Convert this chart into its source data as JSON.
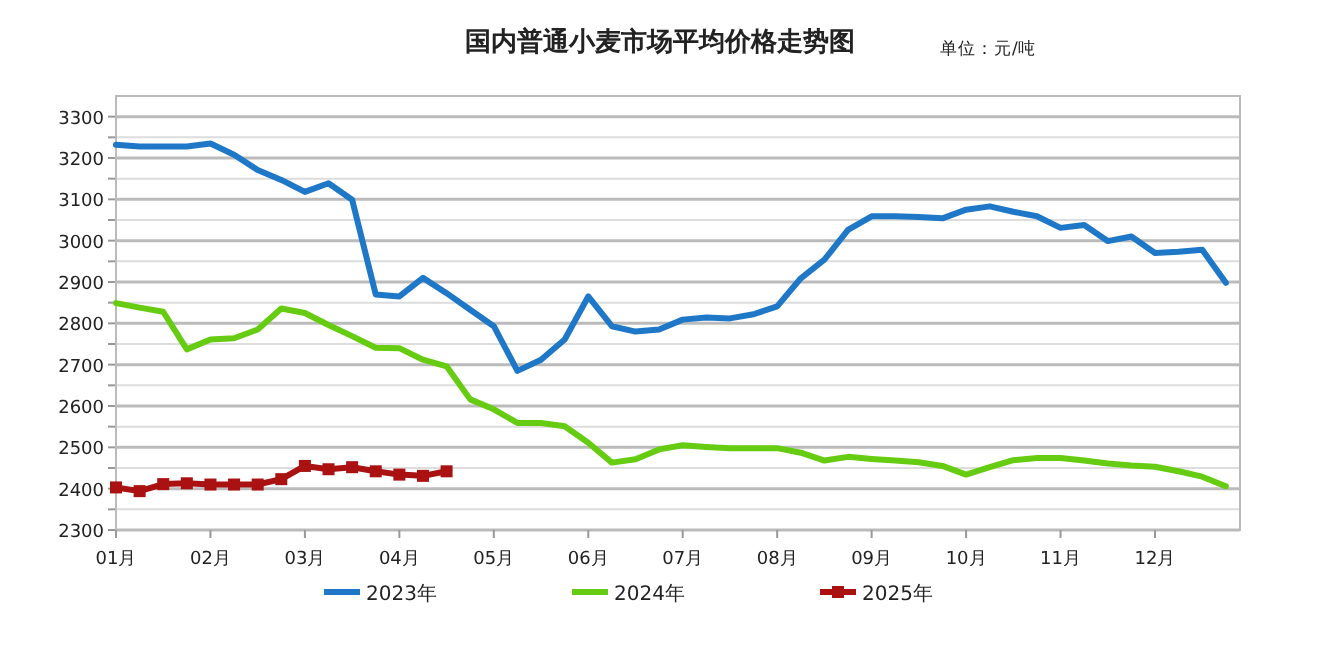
{
  "chart_data": {
    "type": "line",
    "title": "国内普通小麦市场平均价格走势图",
    "annotations": [
      "单位：元/吨"
    ],
    "categories": [
      "01月",
      null,
      null,
      null,
      "02月",
      null,
      null,
      null,
      "03月",
      null,
      null,
      null,
      "04月",
      null,
      null,
      null,
      "05月",
      null,
      null,
      null,
      "06月",
      null,
      null,
      null,
      "07月",
      null,
      null,
      null,
      "08月",
      null,
      null,
      null,
      "09月",
      null,
      null,
      null,
      "10月",
      null,
      null,
      null,
      "11月",
      null,
      null,
      null,
      "12月",
      null,
      null,
      null
    ],
    "series": [
      {
        "name": "2023年",
        "color": "#1f77c8",
        "marker": "none",
        "values": [
          3232,
          3228,
          3228,
          3228,
          3235,
          3208,
          3171,
          3147,
          3118,
          3139,
          3099,
          2870,
          2865,
          2910,
          2873,
          2833,
          2793,
          2685,
          2712,
          2761,
          2865,
          2793,
          2780,
          2785,
          2809,
          2814,
          2812,
          2822,
          2841,
          2909,
          2954,
          3026,
          3059,
          3059,
          3057,
          3054,
          3075,
          3083,
          3070,
          3059,
          3031,
          3038,
          2999,
          3010,
          2970,
          2973,
          2978,
          2898
        ]
      },
      {
        "name": "2024年",
        "color": "#66cc11",
        "marker": "none",
        "values": [
          2849,
          2838,
          2828,
          2737,
          2761,
          2764,
          2785,
          2836,
          2825,
          2796,
          2769,
          2741,
          2740,
          2712,
          2696,
          2616,
          2592,
          2559,
          2559,
          2551,
          2511,
          2463,
          2471,
          2495,
          2505,
          2501,
          2498,
          2498,
          2498,
          2487,
          2468,
          2477,
          2472,
          2468,
          2464,
          2455,
          2434,
          2452,
          2469,
          2474,
          2474,
          2468,
          2461,
          2456,
          2453,
          2442,
          2429,
          2406
        ]
      },
      {
        "name": "2025年",
        "color": "#aa1111",
        "marker": "square",
        "values": [
          2403,
          2394,
          2411,
          2413,
          2410,
          2410,
          2410,
          2423,
          2455,
          2447,
          2452,
          2442,
          2434,
          2431,
          2442,
          null,
          null,
          null,
          null,
          null,
          null,
          null,
          null,
          null,
          null,
          null,
          null,
          null,
          null,
          null,
          null,
          null,
          null,
          null,
          null,
          null,
          null,
          null,
          null,
          null,
          null,
          null,
          null,
          null,
          null,
          null,
          null,
          null
        ]
      }
    ],
    "ylim": [
      2300,
      3350
    ],
    "yticks": [
      2300,
      {
        "value": 2350,
        "label": null
      },
      2400,
      {
        "value": 2450,
        "label": null
      },
      2500,
      {
        "value": 2550,
        "label": null
      },
      2600,
      {
        "value": 2650,
        "label": null
      },
      2700,
      {
        "value": 2750,
        "label": null
      },
      2800,
      {
        "value": 2850,
        "label": null
      },
      2900,
      {
        "value": 2950,
        "label": null
      },
      3000,
      {
        "value": 3050,
        "label": null
      },
      3100,
      {
        "value": 3150,
        "label": null
      },
      3200,
      {
        "value": 3250,
        "label": null
      },
      3300
    ],
    "grid": "y",
    "legend": "bottom",
    "line_style": "solid"
  }
}
